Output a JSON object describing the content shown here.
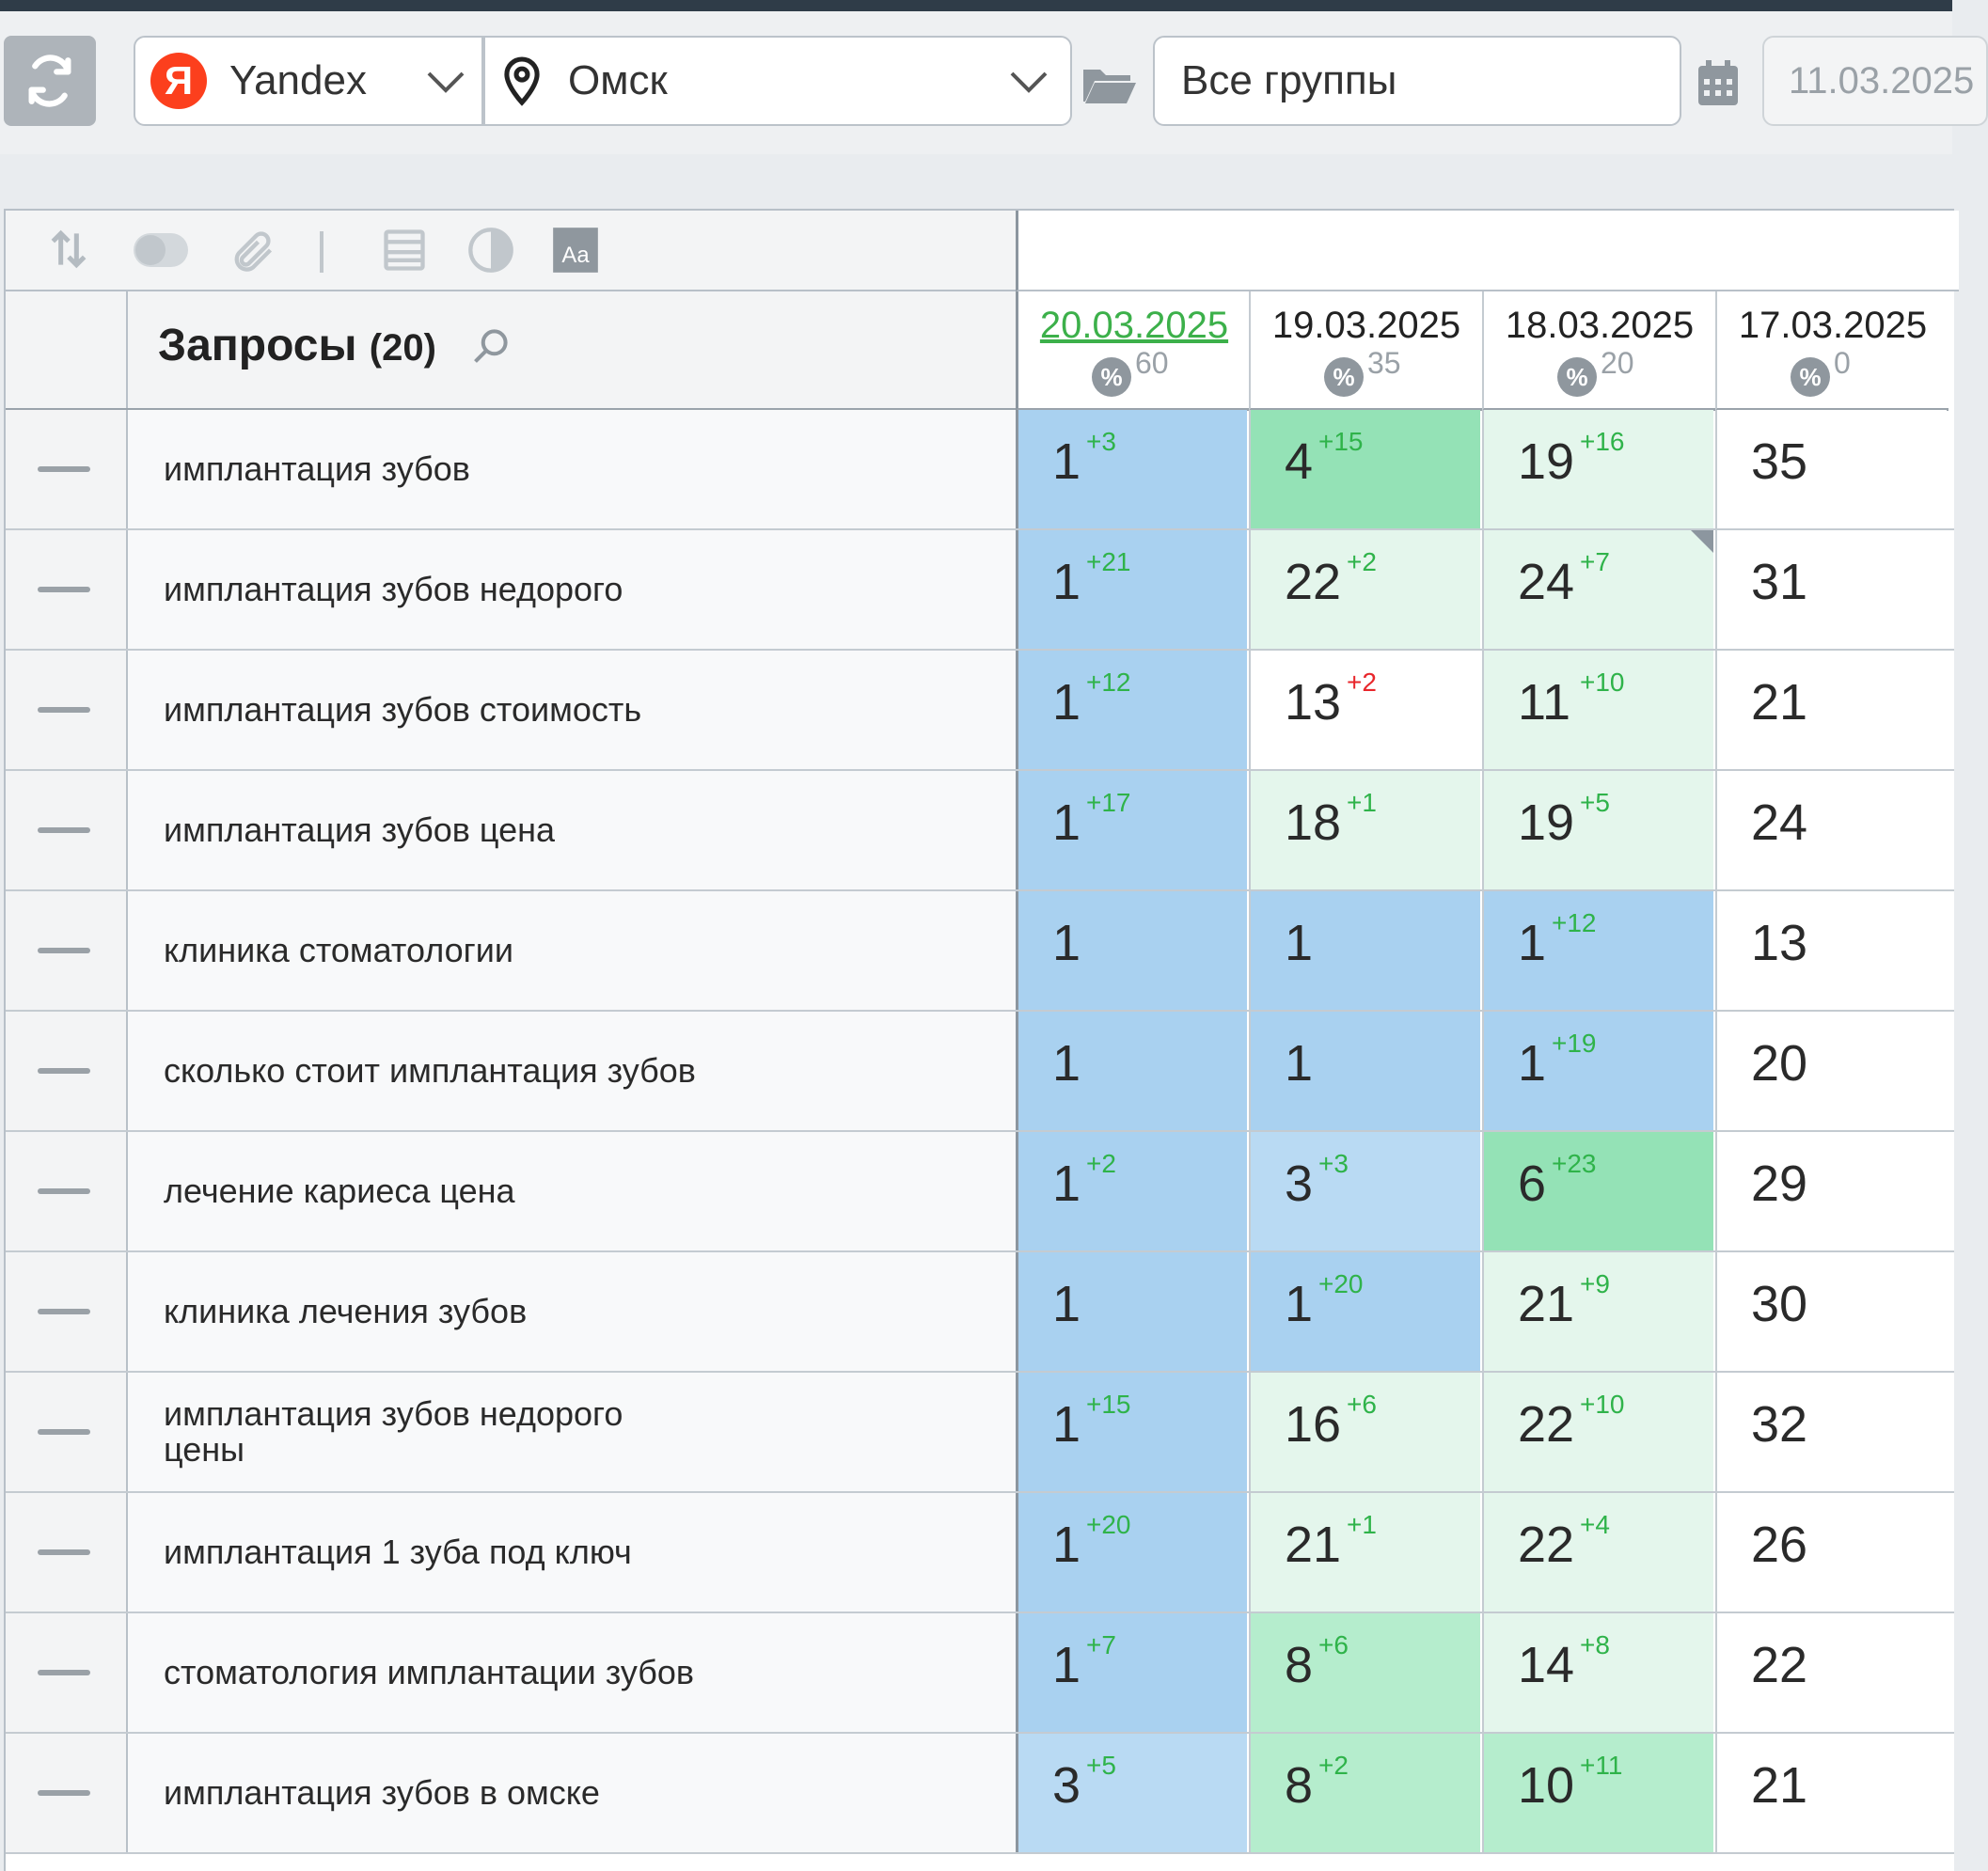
{
  "toolbar": {
    "engine": "Yandex",
    "engine_logo_letter": "Я",
    "region": "Омск",
    "group": "Все группы",
    "date_from": "11.03.2025"
  },
  "table": {
    "title": "Запросы",
    "count": "(20)",
    "dates": [
      {
        "date": "20.03.2025",
        "pct": "60",
        "active": true
      },
      {
        "date": "19.03.2025",
        "pct": "35",
        "active": false
      },
      {
        "date": "18.03.2025",
        "pct": "20",
        "active": false
      },
      {
        "date": "17.03.2025",
        "pct": "0",
        "active": false
      }
    ],
    "pct_symbol": "%",
    "rows": [
      {
        "query": "имплантация зубов",
        "cells": [
          {
            "v": "1",
            "d": "+3",
            "dir": "up",
            "bg": "blue"
          },
          {
            "v": "4",
            "d": "+15",
            "dir": "up",
            "bg": "green"
          },
          {
            "v": "19",
            "d": "+16",
            "dir": "up",
            "bg": "lgreen"
          },
          {
            "v": "35",
            "d": "",
            "dir": "",
            "bg": "white"
          }
        ]
      },
      {
        "query": "имплантация зубов недорого",
        "cells": [
          {
            "v": "1",
            "d": "+21",
            "dir": "up",
            "bg": "blue"
          },
          {
            "v": "22",
            "d": "+2",
            "dir": "up",
            "bg": "lgreen"
          },
          {
            "v": "24",
            "d": "+7",
            "dir": "up",
            "bg": "lgreen",
            "corner": true
          },
          {
            "v": "31",
            "d": "",
            "dir": "",
            "bg": "white"
          }
        ]
      },
      {
        "query": "имплантация зубов стоимость",
        "cells": [
          {
            "v": "1",
            "d": "+12",
            "dir": "up",
            "bg": "blue"
          },
          {
            "v": "13",
            "d": "+2",
            "dir": "down",
            "bg": "white"
          },
          {
            "v": "11",
            "d": "+10",
            "dir": "up",
            "bg": "lgreen"
          },
          {
            "v": "21",
            "d": "",
            "dir": "",
            "bg": "white"
          }
        ]
      },
      {
        "query": "имплантация зубов цена",
        "cells": [
          {
            "v": "1",
            "d": "+17",
            "dir": "up",
            "bg": "blue"
          },
          {
            "v": "18",
            "d": "+1",
            "dir": "up",
            "bg": "lgreen"
          },
          {
            "v": "19",
            "d": "+5",
            "dir": "up",
            "bg": "lgreen"
          },
          {
            "v": "24",
            "d": "",
            "dir": "",
            "bg": "white"
          }
        ]
      },
      {
        "query": "клиника стоматологии",
        "cells": [
          {
            "v": "1",
            "d": "",
            "dir": "",
            "bg": "blue"
          },
          {
            "v": "1",
            "d": "",
            "dir": "",
            "bg": "blue"
          },
          {
            "v": "1",
            "d": "+12",
            "dir": "up",
            "bg": "blue"
          },
          {
            "v": "13",
            "d": "",
            "dir": "",
            "bg": "white"
          }
        ]
      },
      {
        "query": "сколько стоит имплантация зубов",
        "cells": [
          {
            "v": "1",
            "d": "",
            "dir": "",
            "bg": "blue"
          },
          {
            "v": "1",
            "d": "",
            "dir": "",
            "bg": "blue"
          },
          {
            "v": "1",
            "d": "+19",
            "dir": "up",
            "bg": "blue"
          },
          {
            "v": "20",
            "d": "",
            "dir": "",
            "bg": "white"
          }
        ]
      },
      {
        "query": "лечение кариеса цена",
        "cells": [
          {
            "v": "1",
            "d": "+2",
            "dir": "up",
            "bg": "blue"
          },
          {
            "v": "3",
            "d": "+3",
            "dir": "up",
            "bg": "lblue"
          },
          {
            "v": "6",
            "d": "+23",
            "dir": "up",
            "bg": "green"
          },
          {
            "v": "29",
            "d": "",
            "dir": "",
            "bg": "white"
          }
        ]
      },
      {
        "query": "клиника лечения зубов",
        "cells": [
          {
            "v": "1",
            "d": "",
            "dir": "",
            "bg": "blue"
          },
          {
            "v": "1",
            "d": "+20",
            "dir": "up",
            "bg": "blue"
          },
          {
            "v": "21",
            "d": "+9",
            "dir": "up",
            "bg": "lgreen"
          },
          {
            "v": "30",
            "d": "",
            "dir": "",
            "bg": "white"
          }
        ]
      },
      {
        "query": "имплантация зубов недорого цены",
        "cells": [
          {
            "v": "1",
            "d": "+15",
            "dir": "up",
            "bg": "blue"
          },
          {
            "v": "16",
            "d": "+6",
            "dir": "up",
            "bg": "lgreen"
          },
          {
            "v": "22",
            "d": "+10",
            "dir": "up",
            "bg": "lgreen"
          },
          {
            "v": "32",
            "d": "",
            "dir": "",
            "bg": "white"
          }
        ]
      },
      {
        "query": "имплантация 1 зуба под ключ",
        "cells": [
          {
            "v": "1",
            "d": "+20",
            "dir": "up",
            "bg": "blue"
          },
          {
            "v": "21",
            "d": "+1",
            "dir": "up",
            "bg": "lgreen"
          },
          {
            "v": "22",
            "d": "+4",
            "dir": "up",
            "bg": "lgreen"
          },
          {
            "v": "26",
            "d": "",
            "dir": "",
            "bg": "white"
          }
        ]
      },
      {
        "query": "стоматология имплантации зубов",
        "cells": [
          {
            "v": "1",
            "d": "+7",
            "dir": "up",
            "bg": "blue"
          },
          {
            "v": "8",
            "d": "+6",
            "dir": "up",
            "bg": "mgreen"
          },
          {
            "v": "14",
            "d": "+8",
            "dir": "up",
            "bg": "lgreen"
          },
          {
            "v": "22",
            "d": "",
            "dir": "",
            "bg": "white"
          }
        ]
      },
      {
        "query": "имплантация зубов в омске",
        "cells": [
          {
            "v": "3",
            "d": "+5",
            "dir": "up",
            "bg": "lblue"
          },
          {
            "v": "8",
            "d": "+2",
            "dir": "up",
            "bg": "mgreen"
          },
          {
            "v": "10",
            "d": "+11",
            "dir": "up",
            "bg": "mgreen"
          },
          {
            "v": "21",
            "d": "",
            "dir": "",
            "bg": "white"
          }
        ]
      }
    ]
  },
  "colors": {
    "top_position": "#a9d1f0",
    "top3_position": "#b9daf3",
    "strong_gain": "#94e2b6",
    "gain": "#b5edcd",
    "slight_gain": "#e4f6ec",
    "delta_up": "#2fb34a",
    "delta_down": "#e8262b",
    "active_date": "#3cb04a",
    "yandex_red": "#fc3f1d"
  },
  "icons": [
    "refresh-icon",
    "yandex-logo-icon",
    "chevron-down-icon",
    "map-pin-icon",
    "folder-open-icon",
    "calendar-icon",
    "sort-icon",
    "toggle-icon",
    "paperclip-icon",
    "table-view-icon",
    "contrast-icon",
    "font-size-icon",
    "search-icon",
    "percent-icon"
  ]
}
